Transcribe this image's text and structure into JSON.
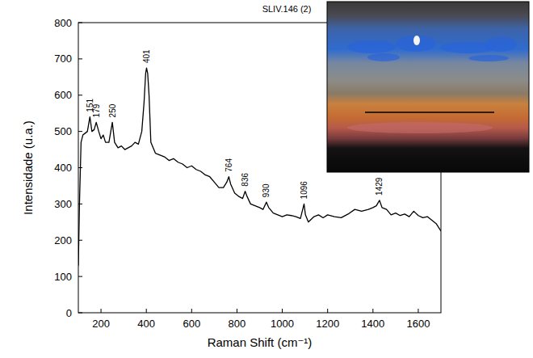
{
  "chart_data": {
    "type": "line",
    "title": "SLIV.146 (2)",
    "x_label": "Raman Shift (cm⁻¹)",
    "y_label": "Intensidade (u.a.)",
    "color": "#000000",
    "xlim": [
      100,
      1700
    ],
    "ylim": [
      0,
      800
    ],
    "xticks": [
      200,
      400,
      600,
      800,
      1000,
      1200,
      1400,
      1600
    ],
    "yticks": [
      0,
      100,
      200,
      300,
      400,
      500,
      600,
      700,
      800
    ],
    "grid": false,
    "x": [
      100,
      105,
      112,
      120,
      130,
      140,
      151,
      160,
      170,
      179,
      190,
      200,
      210,
      220,
      235,
      250,
      260,
      275,
      290,
      305,
      320,
      335,
      350,
      365,
      380,
      390,
      397,
      401,
      406,
      412,
      420,
      440,
      460,
      480,
      500,
      520,
      540,
      560,
      580,
      600,
      620,
      640,
      660,
      680,
      700,
      720,
      740,
      755,
      764,
      772,
      790,
      810,
      825,
      836,
      845,
      860,
      880,
      900,
      915,
      930,
      940,
      960,
      980,
      1000,
      1020,
      1040,
      1060,
      1080,
      1090,
      1096,
      1102,
      1115,
      1140,
      1160,
      1180,
      1200,
      1230,
      1260,
      1290,
      1320,
      1350,
      1380,
      1400,
      1415,
      1429,
      1440,
      1460,
      1480,
      1500,
      1520,
      1540,
      1560,
      1580,
      1600,
      1620,
      1640,
      1660,
      1680,
      1700
    ],
    "values": [
      130,
      300,
      470,
      490,
      495,
      500,
      540,
      500,
      505,
      525,
      500,
      480,
      490,
      470,
      470,
      525,
      470,
      455,
      460,
      450,
      455,
      460,
      470,
      465,
      500,
      580,
      660,
      675,
      660,
      600,
      470,
      440,
      435,
      430,
      420,
      425,
      415,
      410,
      400,
      405,
      395,
      390,
      380,
      375,
      360,
      345,
      345,
      360,
      375,
      355,
      330,
      320,
      315,
      335,
      320,
      300,
      295,
      290,
      285,
      305,
      290,
      275,
      270,
      265,
      270,
      268,
      265,
      260,
      285,
      300,
      270,
      250,
      265,
      270,
      262,
      270,
      265,
      262,
      272,
      285,
      280,
      285,
      290,
      295,
      310,
      290,
      285,
      270,
      275,
      268,
      272,
      265,
      280,
      268,
      262,
      265,
      255,
      245,
      225
    ],
    "annotations": [
      {
        "x": 151,
        "y": 540,
        "text": "151"
      },
      {
        "x": 179,
        "y": 525,
        "text": "179"
      },
      {
        "x": 250,
        "y": 525,
        "text": "250"
      },
      {
        "x": 401,
        "y": 675,
        "text": "401"
      },
      {
        "x": 764,
        "y": 375,
        "text": "764"
      },
      {
        "x": 836,
        "y": 335,
        "text": "836"
      },
      {
        "x": 930,
        "y": 305,
        "text": "930"
      },
      {
        "x": 1096,
        "y": 300,
        "text": "1096"
      },
      {
        "x": 1429,
        "y": 310,
        "text": "1429"
      }
    ]
  }
}
